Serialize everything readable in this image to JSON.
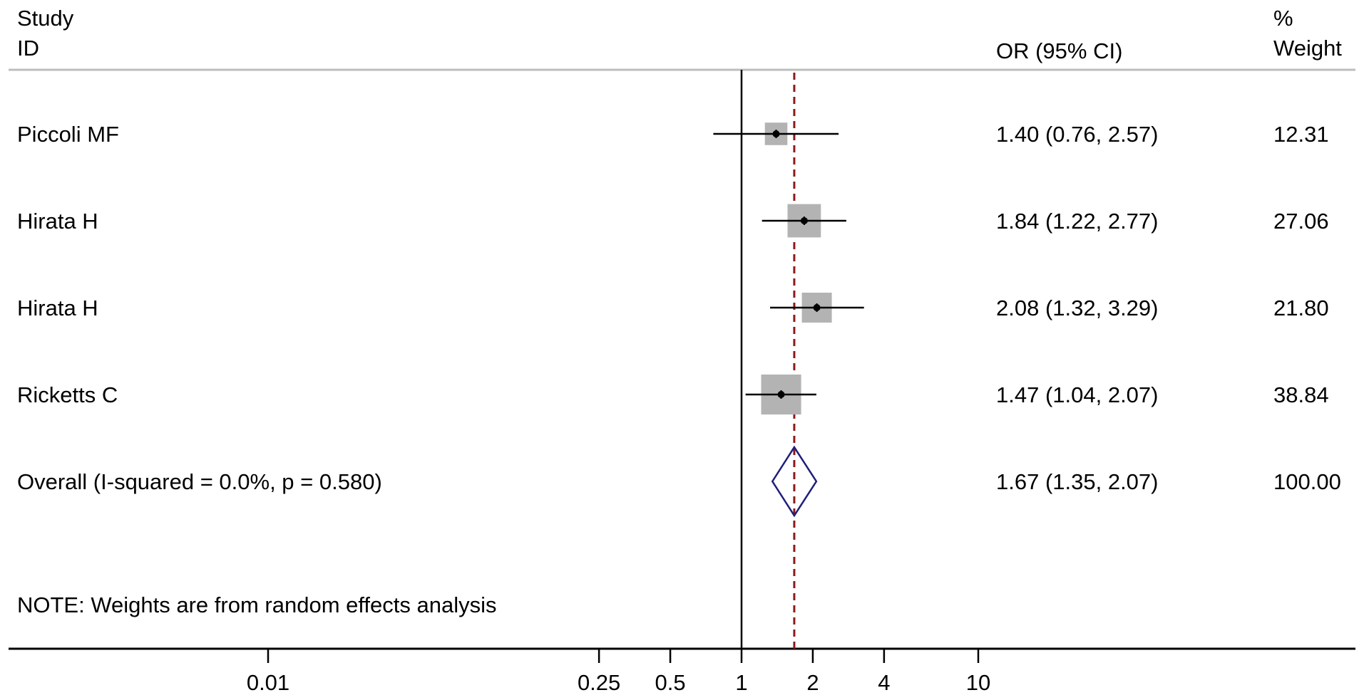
{
  "header": {
    "study_line1": "Study",
    "study_line2": "ID",
    "ci_label": "OR (95% CI)",
    "weight_line1": "%",
    "weight_line2": "Weight"
  },
  "note": "NOTE: Weights are from random effects analysis",
  "colors": {
    "reference_line": "#000000",
    "overall_line": "#8b1a1a",
    "weight_box": "#b3b3b3",
    "diamond": "#1f1f7a"
  },
  "chart_data": {
    "type": "forest",
    "x_scale": "log",
    "xlim": [
      0.0035,
      75
    ],
    "x_ticks": [
      0.01,
      0.25,
      0.5,
      1,
      2,
      4,
      10
    ],
    "x_tick_labels": [
      "0.01",
      "0.25",
      "0.5",
      "1",
      "2",
      "4",
      "10"
    ],
    "null_value": 1,
    "studies": [
      {
        "id": "Piccoli MF",
        "or": 1.4,
        "lower": 0.76,
        "upper": 2.57,
        "ci_text": "1.40 (0.76, 2.57)",
        "weight": 12.31,
        "weight_text": "12.31"
      },
      {
        "id": "Hirata H",
        "or": 1.84,
        "lower": 1.22,
        "upper": 2.77,
        "ci_text": "1.84 (1.22, 2.77)",
        "weight": 27.06,
        "weight_text": "27.06"
      },
      {
        "id": "Hirata H",
        "or": 2.08,
        "lower": 1.32,
        "upper": 3.29,
        "ci_text": "2.08 (1.32, 3.29)",
        "weight": 21.8,
        "weight_text": "21.80"
      },
      {
        "id": "Ricketts C",
        "or": 1.47,
        "lower": 1.04,
        "upper": 2.07,
        "ci_text": "1.47 (1.04, 2.07)",
        "weight": 38.84,
        "weight_text": "38.84"
      }
    ],
    "overall": {
      "label": "Overall (I-squared = 0.0%, p = 0.580)",
      "or": 1.67,
      "lower": 1.35,
      "upper": 2.07,
      "ci_text": "1.67 (1.35, 2.07)",
      "weight_text": "100.00"
    }
  }
}
